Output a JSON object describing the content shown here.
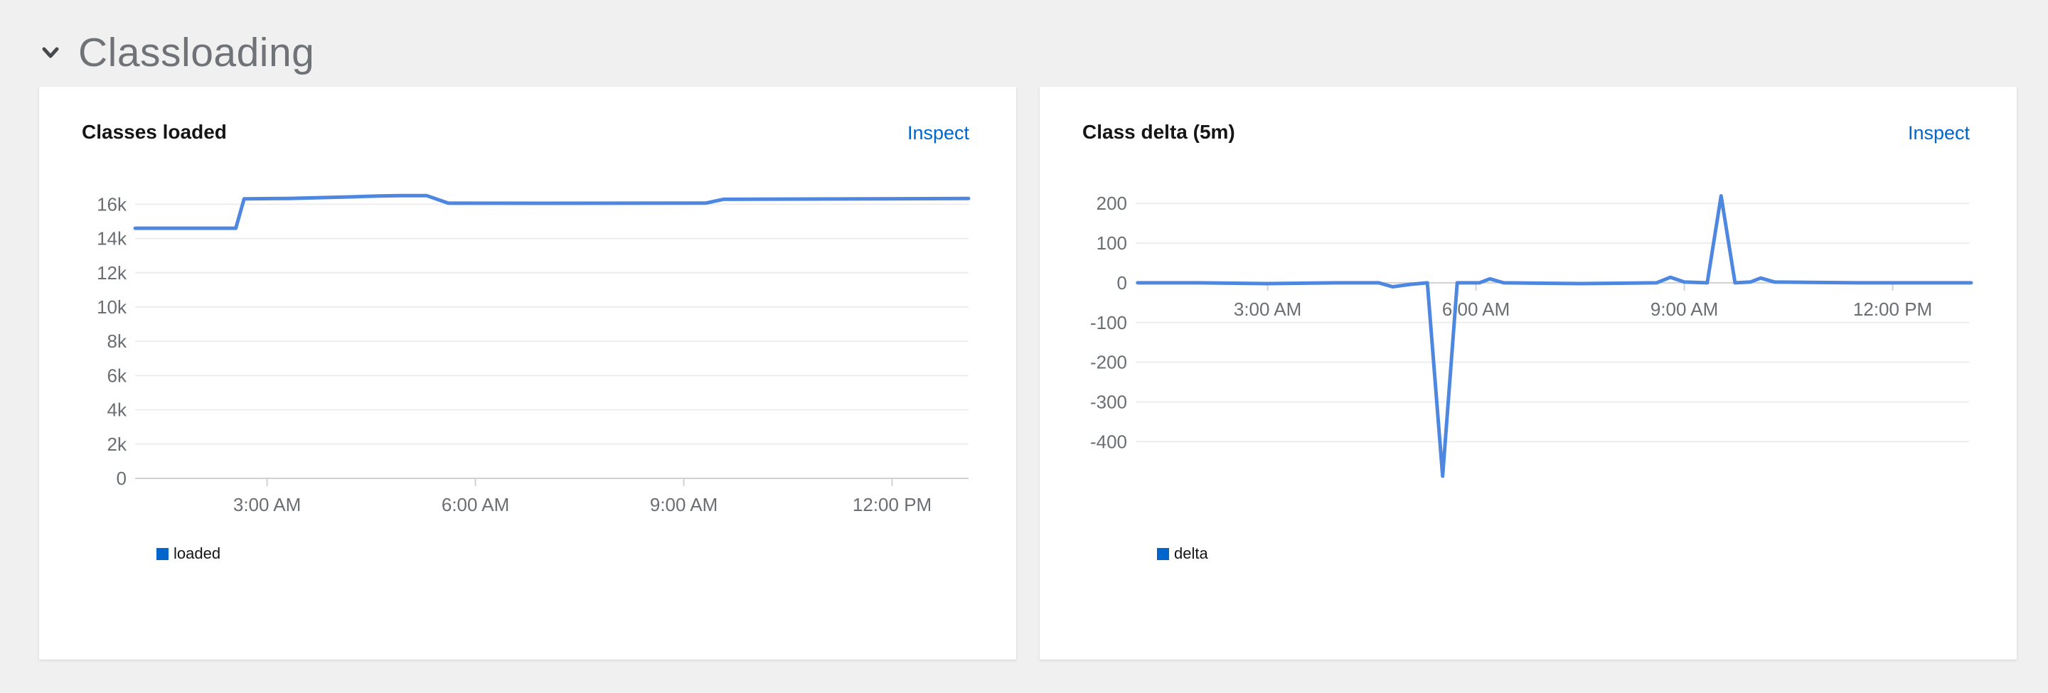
{
  "header": {
    "title": "Classloading"
  },
  "cards": [
    {
      "title": "Classes loaded",
      "action": "Inspect",
      "legend": [
        {
          "label": "loaded"
        }
      ]
    },
    {
      "title": "Class delta (5m)",
      "action": "Inspect",
      "legend": [
        {
          "label": "delta"
        }
      ]
    }
  ],
  "colors": {
    "page_background": "#f0f0f0",
    "card_background": "#ffffff",
    "section_title": "#6f7377",
    "chevron": "#45494e",
    "card_title": "#151515",
    "link": "#0066cc",
    "series_line": "#4e87e0",
    "legend_swatch": "#0066cc",
    "axis_label": "#6a6e73",
    "gridline": "#ededed",
    "axis_line": "#d2d2d2"
  },
  "chart_data": [
    {
      "type": "line",
      "title": "Classes loaded",
      "xlabel": "",
      "ylabel": "",
      "x_unit": "hour_of_day",
      "xlim": [
        1.1,
        13.1
      ],
      "ylim": [
        0,
        17260
      ],
      "axis_y": 0,
      "grid": true,
      "legend_position": "bottom-left",
      "xticks": {
        "values": [
          3,
          6,
          9,
          12
        ],
        "labels": [
          "3:00 AM",
          "6:00 AM",
          "9:00 AM",
          "12:00 PM"
        ]
      },
      "yticks": {
        "values": [
          0,
          2000,
          4000,
          6000,
          8000,
          10000,
          12000,
          14000,
          16000
        ],
        "labels": [
          "0",
          "2k",
          "4k",
          "6k",
          "8k",
          "10k",
          "12k",
          "14k",
          "16k"
        ]
      },
      "series": [
        {
          "name": "loaded",
          "x": [
            1.1,
            2.55,
            2.67,
            3.3,
            4.2,
            4.6,
            4.9,
            5.3,
            5.61,
            7.0,
            9.2,
            9.32,
            9.57,
            10.5,
            13.1
          ],
          "y": [
            14600,
            14600,
            16320,
            16340,
            16430,
            16480,
            16500,
            16500,
            16060,
            16055,
            16065,
            16070,
            16290,
            16300,
            16335
          ]
        }
      ]
    },
    {
      "type": "line",
      "title": "Class delta (5m)",
      "xlabel": "",
      "ylabel": "",
      "x_unit": "hour_of_day",
      "xlim": [
        1.1,
        13.1
      ],
      "ylim": [
        -505,
        229
      ],
      "axis_y": 0,
      "grid": true,
      "legend_position": "bottom-left",
      "xticks": {
        "values": [
          3,
          6,
          9,
          12
        ],
        "labels": [
          "3:00 AM",
          "6:00 AM",
          "9:00 AM",
          "12:00 PM"
        ]
      },
      "yticks": {
        "values": [
          200,
          100,
          0,
          -100,
          -200,
          -300,
          -400
        ],
        "labels": [
          "200",
          "100",
          "0",
          "-100",
          "-200",
          "-300",
          "-400"
        ]
      },
      "series": [
        {
          "name": "delta",
          "x": [
            1.13,
            2.0,
            3.0,
            4.0,
            4.6,
            4.8,
            5.05,
            5.3,
            5.52,
            5.73,
            6.05,
            6.2,
            6.4,
            7.5,
            8.6,
            8.8,
            9.0,
            9.33,
            9.53,
            9.73,
            9.95,
            10.1,
            10.3,
            11.5,
            13.13
          ],
          "y": [
            0,
            0,
            -2,
            0,
            0,
            -10,
            -4,
            0,
            -487,
            0,
            0,
            10,
            0,
            -2,
            0,
            14,
            2,
            0,
            219,
            0,
            2,
            12,
            2,
            0,
            0
          ]
        }
      ]
    }
  ]
}
